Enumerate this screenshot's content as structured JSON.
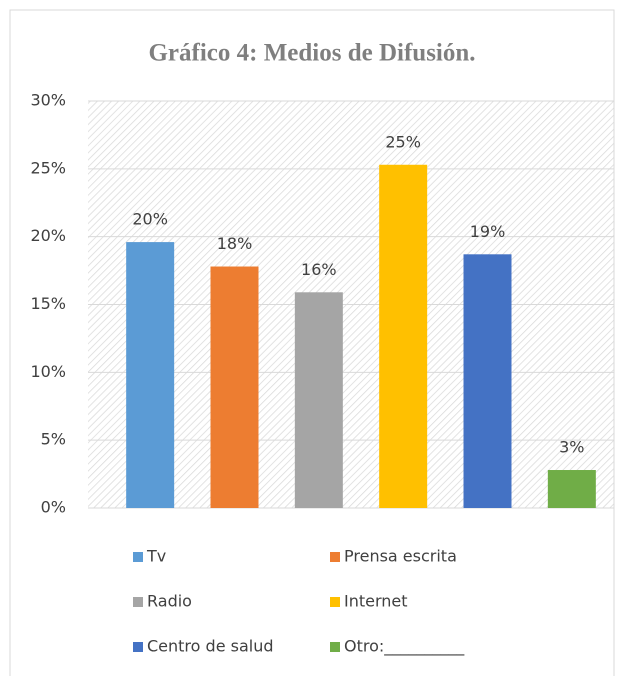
{
  "chart_data": {
    "type": "bar",
    "title": "Gráfico 4: Medios de Difusión.",
    "categories": [
      "Tv",
      "Prensa escrita",
      "Radio",
      "Internet",
      "Centro de salud",
      "Otro:__________"
    ],
    "values": [
      19.6,
      17.8,
      15.9,
      25.3,
      18.7,
      2.8
    ],
    "value_labels": [
      "20%",
      "18%",
      "16%",
      "25%",
      "19%",
      "3%"
    ],
    "colors": [
      "#5b9bd5",
      "#ed7d31",
      "#a5a5a5",
      "#ffc000",
      "#4472c4",
      "#70ad47"
    ],
    "ylim": [
      0,
      30
    ],
    "yticks": [
      {
        "value": 0,
        "label": "0%"
      },
      {
        "value": 5,
        "label": "5%"
      },
      {
        "value": 10,
        "label": "10%"
      },
      {
        "value": 15,
        "label": "15%"
      },
      {
        "value": 20,
        "label": "20%"
      },
      {
        "value": 25,
        "label": "25%"
      },
      {
        "value": 30,
        "label": "30%"
      }
    ],
    "grid": true,
    "legend": "bottom"
  }
}
